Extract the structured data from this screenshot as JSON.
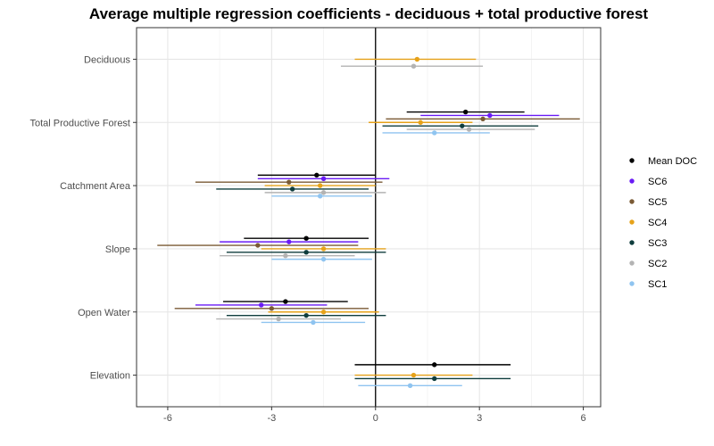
{
  "chart_data": {
    "type": "point-range",
    "title": "Average multiple regression coefficients - deciduous + total productive forest",
    "xlim": [
      -6.9,
      6.5
    ],
    "xticks": [
      -6,
      -3,
      0,
      3,
      6
    ],
    "xtick_labels": [
      "-6",
      "-3",
      "0",
      "3",
      "6"
    ],
    "categories": [
      "Deciduous",
      "Total Productive Forest",
      "Catchment Area",
      "Slope",
      "Open Water",
      "Elevation"
    ],
    "grid": true,
    "reference_line_x": 0,
    "legend_position": "right",
    "series": [
      {
        "name": "Mean DOC",
        "color": "#000000",
        "points": [
          {
            "category": "Total Productive Forest",
            "estimate": 2.6,
            "low": 0.9,
            "high": 4.3
          },
          {
            "category": "Catchment Area",
            "estimate": -1.7,
            "low": -3.4,
            "high": 0.0
          },
          {
            "category": "Slope",
            "estimate": -2.0,
            "low": -3.8,
            "high": -0.2
          },
          {
            "category": "Open Water",
            "estimate": -2.6,
            "low": -4.4,
            "high": -0.8
          },
          {
            "category": "Elevation",
            "estimate": 1.7,
            "low": -0.6,
            "high": 3.9
          }
        ]
      },
      {
        "name": "SC6",
        "color": "#6a1bf5",
        "points": [
          {
            "category": "Total Productive Forest",
            "estimate": 3.3,
            "low": 1.3,
            "high": 5.3
          },
          {
            "category": "Catchment Area",
            "estimate": -1.5,
            "low": -3.4,
            "high": 0.4
          },
          {
            "category": "Slope",
            "estimate": -2.5,
            "low": -4.5,
            "high": -0.5
          },
          {
            "category": "Open Water",
            "estimate": -3.3,
            "low": -5.2,
            "high": -1.4
          }
        ]
      },
      {
        "name": "SC5",
        "color": "#7a5a35",
        "points": [
          {
            "category": "Total Productive Forest",
            "estimate": 3.1,
            "low": 0.3,
            "high": 5.9
          },
          {
            "category": "Catchment Area",
            "estimate": -2.5,
            "low": -5.2,
            "high": 0.2
          },
          {
            "category": "Slope",
            "estimate": -3.4,
            "low": -6.3,
            "high": -0.5
          },
          {
            "category": "Open Water",
            "estimate": -3.0,
            "low": -5.8,
            "high": -0.2
          }
        ]
      },
      {
        "name": "SC4",
        "color": "#e6a21a",
        "points": [
          {
            "category": "Deciduous",
            "estimate": 1.2,
            "low": -0.6,
            "high": 2.9
          },
          {
            "category": "Total Productive Forest",
            "estimate": 1.3,
            "low": -0.2,
            "high": 2.8
          },
          {
            "category": "Catchment Area",
            "estimate": -1.6,
            "low": -3.2,
            "high": 0.0
          },
          {
            "category": "Slope",
            "estimate": -1.5,
            "low": -3.3,
            "high": 0.3
          },
          {
            "category": "Open Water",
            "estimate": -1.5,
            "low": -3.1,
            "high": 0.1
          },
          {
            "category": "Elevation",
            "estimate": 1.1,
            "low": -0.6,
            "high": 2.8
          }
        ]
      },
      {
        "name": "SC3",
        "color": "#0f3d3d",
        "points": [
          {
            "category": "Total Productive Forest",
            "estimate": 2.5,
            "low": 0.2,
            "high": 4.7
          },
          {
            "category": "Catchment Area",
            "estimate": -2.4,
            "low": -4.6,
            "high": -0.2
          },
          {
            "category": "Slope",
            "estimate": -2.0,
            "low": -4.3,
            "high": 0.3
          },
          {
            "category": "Open Water",
            "estimate": -2.0,
            "low": -4.3,
            "high": 0.3
          },
          {
            "category": "Elevation",
            "estimate": 1.7,
            "low": -0.6,
            "high": 3.9
          }
        ]
      },
      {
        "name": "SC2",
        "color": "#b3b3b3",
        "points": [
          {
            "category": "Deciduous",
            "estimate": 1.1,
            "low": -1.0,
            "high": 3.1
          },
          {
            "category": "Total Productive Forest",
            "estimate": 2.7,
            "low": 0.9,
            "high": 4.6
          },
          {
            "category": "Catchment Area",
            "estimate": -1.5,
            "low": -3.2,
            "high": 0.3
          },
          {
            "category": "Slope",
            "estimate": -2.6,
            "low": -4.5,
            "high": -0.6
          },
          {
            "category": "Open Water",
            "estimate": -2.8,
            "low": -4.6,
            "high": -1.0
          }
        ]
      },
      {
        "name": "SC1",
        "color": "#8fc4f0",
        "points": [
          {
            "category": "Total Productive Forest",
            "estimate": 1.7,
            "low": 0.2,
            "high": 3.3
          },
          {
            "category": "Catchment Area",
            "estimate": -1.6,
            "low": -3.0,
            "high": -0.1
          },
          {
            "category": "Slope",
            "estimate": -1.5,
            "low": -3.0,
            "high": -0.1
          },
          {
            "category": "Open Water",
            "estimate": -1.8,
            "low": -3.3,
            "high": -0.3
          },
          {
            "category": "Elevation",
            "estimate": 1.0,
            "low": -0.5,
            "high": 2.5
          }
        ]
      }
    ]
  }
}
